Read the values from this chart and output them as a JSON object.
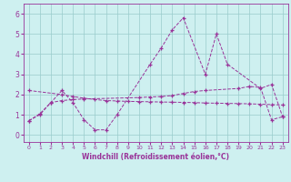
{
  "background_color": "#cef0f0",
  "line_color": "#993399",
  "grid_color": "#99cccc",
  "xlabel": "Windchill (Refroidissement éolien,°C)",
  "ylabel_ticks": [
    0,
    1,
    2,
    3,
    4,
    5,
    6
  ],
  "xlim": [
    -0.5,
    23.5
  ],
  "ylim": [
    -0.35,
    6.5
  ],
  "xticks": [
    0,
    1,
    2,
    3,
    4,
    5,
    6,
    7,
    8,
    9,
    10,
    11,
    12,
    13,
    14,
    15,
    16,
    17,
    18,
    19,
    20,
    21,
    22,
    23
  ],
  "s1_x": [
    0,
    1,
    2,
    3,
    4,
    5,
    6,
    7,
    8,
    11,
    12,
    13,
    14,
    16,
    17,
    18,
    21,
    22,
    23
  ],
  "s1_y": [
    0.7,
    1.0,
    1.6,
    2.2,
    1.6,
    0.75,
    0.25,
    0.25,
    1.0,
    3.5,
    4.3,
    5.2,
    5.8,
    3.0,
    5.0,
    3.5,
    2.3,
    2.5,
    0.9
  ],
  "s2_x": [
    0,
    1,
    2,
    3,
    4,
    5,
    10,
    11,
    12,
    13,
    14,
    15,
    16,
    19,
    20,
    21,
    22,
    23
  ],
  "s2_y": [
    0.7,
    1.05,
    1.6,
    1.7,
    1.75,
    1.78,
    1.85,
    1.88,
    1.9,
    1.95,
    2.05,
    2.15,
    2.2,
    2.3,
    2.4,
    2.35,
    0.75,
    0.9
  ],
  "s3_x": [
    0,
    3,
    4,
    5,
    6,
    7,
    8,
    9,
    10,
    11,
    12,
    13,
    14,
    15,
    16,
    17,
    18,
    19,
    20,
    21,
    22,
    23
  ],
  "s3_y": [
    2.2,
    2.0,
    1.9,
    1.82,
    1.75,
    1.7,
    1.68,
    1.66,
    1.65,
    1.64,
    1.63,
    1.62,
    1.61,
    1.6,
    1.58,
    1.57,
    1.56,
    1.55,
    1.54,
    1.52,
    1.5,
    1.48
  ],
  "figsize": [
    3.2,
    2.0
  ],
  "dpi": 100
}
